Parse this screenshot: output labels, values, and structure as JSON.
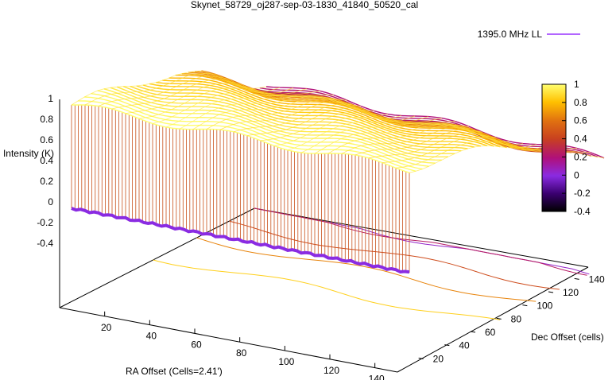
{
  "chart_data": {
    "type": "surface",
    "title": "Skynet_58729_oj287-sep-03-1830_41840_50520_cal",
    "xlabel": "RA Offset (Cells=2.41')",
    "ylabel": "Dec Offset (cells)",
    "zlabel": "Intensity (K)",
    "xlim": [
      0,
      150
    ],
    "ylim": [
      0,
      150
    ],
    "zlim": [
      -0.4,
      1
    ],
    "x_ticks": [
      "20",
      "40",
      "60",
      "80",
      "100",
      "120",
      "140"
    ],
    "y_ticks": [
      "20",
      "40",
      "60",
      "80",
      "100",
      "120",
      "140"
    ],
    "z_ticks": [
      "1",
      "0.8",
      "0.6",
      "0.4",
      "0.2",
      "0",
      "-0.2",
      "-0.4"
    ],
    "series": [
      {
        "name": "1395.0 MHz LL"
      }
    ],
    "colorbar": {
      "range": [
        -0.4,
        1
      ],
      "ticks": [
        "1",
        "0.8",
        "0.6",
        "0.4",
        "0.2",
        "0",
        "-0.2",
        "-0.4"
      ],
      "palette": [
        "#000000",
        "#4b0082",
        "#8a2be2",
        "#b5005a",
        "#d2691e",
        "#ff8c00",
        "#ffd700",
        "#ffff66"
      ]
    },
    "surface_profile_along_dec": [
      [
        0,
        1.0
      ],
      [
        20,
        0.97
      ],
      [
        40,
        0.92
      ],
      [
        60,
        0.86
      ],
      [
        80,
        0.78
      ],
      [
        100,
        0.65
      ],
      [
        120,
        0.45
      ],
      [
        140,
        0.3
      ],
      [
        150,
        0.25
      ]
    ],
    "contour_levels": [
      0.0,
      0.2,
      0.4,
      0.6,
      0.8
    ],
    "grid": false,
    "legend_position": "top-right"
  }
}
